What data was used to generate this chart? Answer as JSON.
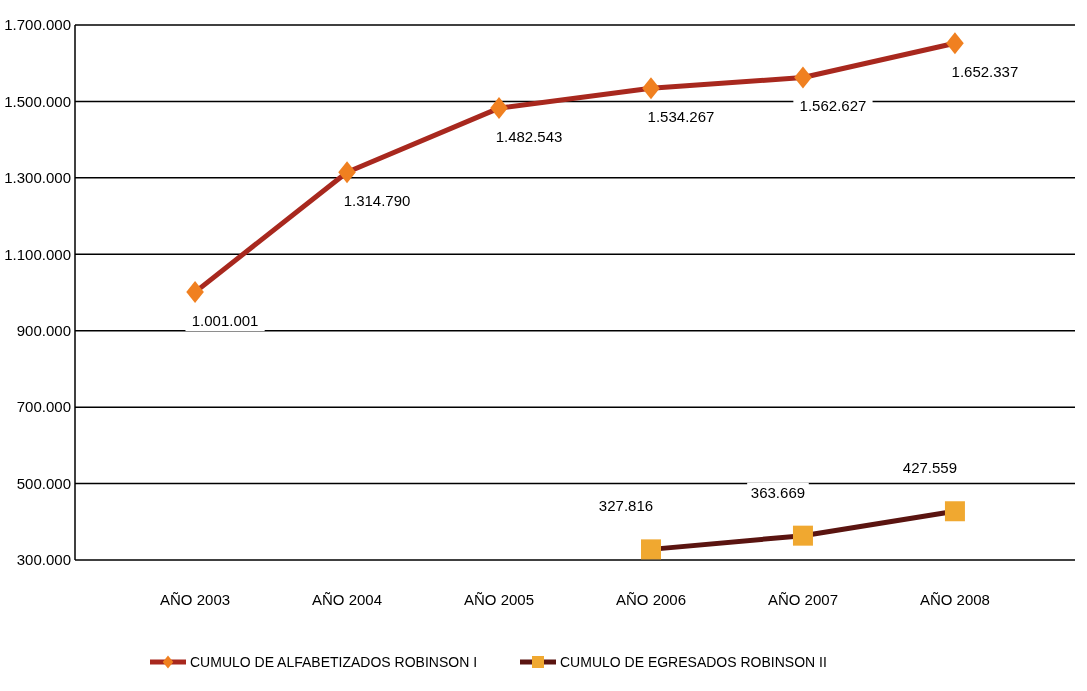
{
  "chart_data": {
    "type": "line",
    "categories": [
      "AÑO 2003",
      "AÑO 2004",
      "AÑO 2005",
      "AÑO 2006",
      "AÑO 2007",
      "AÑO 2008"
    ],
    "ylim": [
      300000,
      1700000
    ],
    "yticks": [
      {
        "value": 300000,
        "label": "300.000"
      },
      {
        "value": 500000,
        "label": "500.000"
      },
      {
        "value": 700000,
        "label": "700.000"
      },
      {
        "value": 900000,
        "label": "900.000"
      },
      {
        "value": 1100000,
        "label": "1.100.000"
      },
      {
        "value": 1300000,
        "label": "1.300.000"
      },
      {
        "value": 1500000,
        "label": "1.500.000"
      },
      {
        "value": 1700000,
        "label": "1.700.000"
      }
    ],
    "grid": "y",
    "legend": "bottom",
    "series": [
      {
        "name": "CUMULO DE ALFABETIZADOS ROBINSON I",
        "color": "#a8281e",
        "marker": "diamond",
        "colors": [
          "#f08020",
          "#f08020",
          "#f08020",
          "#f08020",
          "#f08020",
          "#f08020"
        ],
        "values": [
          1001001,
          1314790,
          1482543,
          1534267,
          1562627,
          1652337
        ],
        "value_labels": [
          "1.001.001",
          "1.314.790",
          "1.482.543",
          "1.534.267",
          "1.562.627",
          "1.652.337"
        ]
      },
      {
        "name": "CUMULO DE EGRESADOS ROBINSON II",
        "color": "#5a1410",
        "marker": "square",
        "colors": [
          null,
          null,
          null,
          "#f0a830",
          "#f0a830",
          "#f0a830"
        ],
        "values": [
          null,
          null,
          null,
          327816,
          363669,
          427559
        ],
        "value_labels": [
          null,
          null,
          null,
          "327.816",
          "363.669",
          "427.559"
        ]
      }
    ]
  }
}
